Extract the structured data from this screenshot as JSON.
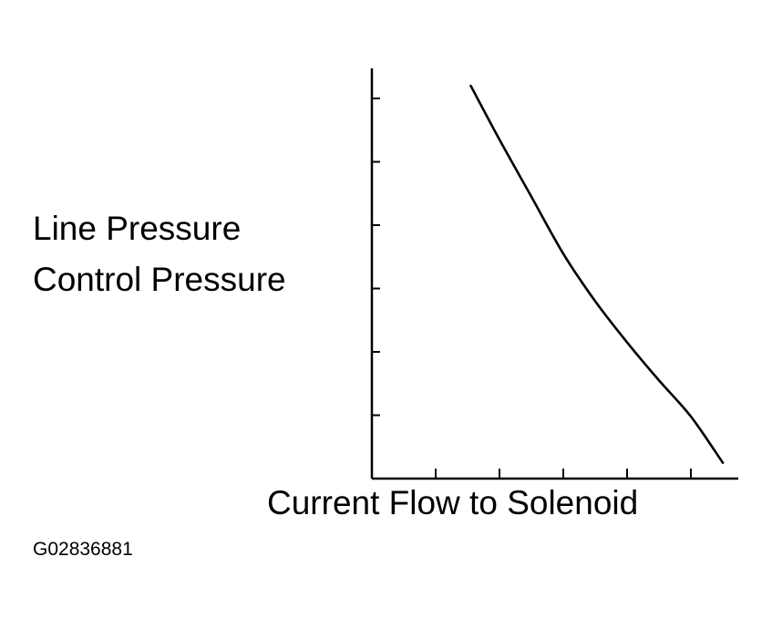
{
  "chart_data": {
    "type": "line",
    "title": "",
    "ylabel_lines": [
      "Line Pressure",
      "Control Pressure"
    ],
    "xlabel": "Current Flow to Solenoid",
    "x_tick_count": 5,
    "y_tick_count": 6,
    "xlim": [
      0,
      6
    ],
    "ylim": [
      0,
      7
    ],
    "grid": false,
    "series": [
      {
        "x": [
          1.55,
          2.0,
          2.5,
          3.0,
          3.5,
          4.0,
          4.5,
          5.0,
          5.5,
          5.0
        ],
        "y": [
          6.2,
          5.35,
          4.45,
          3.55,
          2.8,
          2.15,
          1.55,
          0.98,
          0.25,
          0.98
        ],
        "color": "#000000"
      }
    ]
  },
  "figure_id": "G02836881"
}
